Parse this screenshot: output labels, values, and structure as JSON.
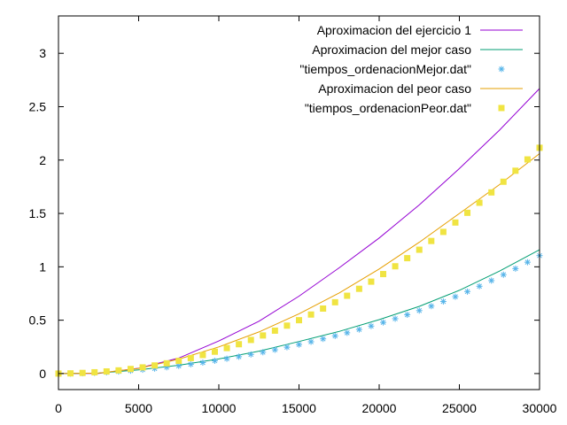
{
  "chart_data": {
    "type": "line",
    "title": "",
    "xlabel": "",
    "ylabel": "",
    "xlim": [
      0,
      30000
    ],
    "ylim": [
      -0.15,
      3.35
    ],
    "grid": false,
    "legend_position": "top-right",
    "x_ticks": [
      0,
      5000,
      10000,
      15000,
      20000,
      25000,
      30000
    ],
    "x_tick_labels": [
      "0",
      "5000",
      "10000",
      "15000",
      "20000",
      "25000",
      "30000"
    ],
    "y_ticks": [
      0,
      0.5,
      1,
      1.5,
      2,
      2.5,
      3
    ],
    "y_tick_labels": [
      "0",
      "0.5",
      "1",
      "1.5",
      "2",
      "2.5",
      "3"
    ],
    "series": [
      {
        "name": "Aproximacion del ejercicio 1",
        "style": "line",
        "color": "#9400d3",
        "x": [
          0,
          2500,
          5000,
          7500,
          10000,
          12500,
          15000,
          17500,
          20000,
          22500,
          25000,
          27500,
          30000
        ],
        "y": [
          0,
          0.0015,
          0.05,
          0.145,
          0.305,
          0.49,
          0.725,
          0.99,
          1.27,
          1.58,
          1.92,
          2.28,
          2.67
        ]
      },
      {
        "name": "Aproximacion del mejor caso",
        "style": "line",
        "color": "#009e73",
        "x": [
          0,
          2500,
          5000,
          7500,
          10000,
          12500,
          15000,
          17500,
          20000,
          22500,
          25000,
          27500,
          30000
        ],
        "y": [
          0,
          0.004,
          0.035,
          0.078,
          0.137,
          0.21,
          0.3,
          0.395,
          0.505,
          0.63,
          0.78,
          0.96,
          1.16
        ]
      },
      {
        "name": "\"tiempos_ordenacionMejor.dat\"",
        "style": "points-star",
        "color": "#56b4e9",
        "x": [
          0,
          750,
          1500,
          2250,
          3000,
          3750,
          4500,
          5250,
          6000,
          6750,
          7500,
          8250,
          9000,
          9750,
          10500,
          11250,
          12000,
          12750,
          13500,
          14250,
          15000,
          15750,
          16500,
          17250,
          18000,
          18750,
          19500,
          20250,
          21000,
          21750,
          22500,
          23250,
          24000,
          24750,
          25500,
          26250,
          27000,
          27750,
          28500,
          29250,
          30000
        ],
        "y": [
          0.0,
          0.0,
          0.003,
          0.007,
          0.012,
          0.019,
          0.027,
          0.036,
          0.047,
          0.059,
          0.072,
          0.087,
          0.103,
          0.12,
          0.139,
          0.158,
          0.179,
          0.2,
          0.223,
          0.247,
          0.272,
          0.298,
          0.325,
          0.353,
          0.382,
          0.413,
          0.445,
          0.479,
          0.514,
          0.551,
          0.59,
          0.632,
          0.675,
          0.72,
          0.768,
          0.818,
          0.871,
          0.926,
          0.983,
          1.043,
          1.105
        ]
      },
      {
        "name": "Aproximacion del peor caso",
        "style": "line",
        "color": "#e69f00",
        "x": [
          0,
          2500,
          5000,
          7500,
          10000,
          12500,
          15000,
          17500,
          20000,
          22500,
          25000,
          27500,
          30000
        ],
        "y": [
          0,
          0.004,
          0.048,
          0.135,
          0.25,
          0.39,
          0.56,
          0.755,
          0.98,
          1.23,
          1.5,
          1.77,
          2.06
        ]
      },
      {
        "name": "\"tiempos_ordenacionPeor.dat\"",
        "style": "points-square",
        "color": "#f0e442",
        "x": [
          0,
          750,
          1500,
          2250,
          3000,
          3750,
          4500,
          5250,
          6000,
          6750,
          7500,
          8250,
          9000,
          9750,
          10500,
          11250,
          12000,
          12750,
          13500,
          14250,
          15000,
          15750,
          16500,
          17250,
          18000,
          18750,
          19500,
          20250,
          21000,
          21750,
          22500,
          23250,
          24000,
          24750,
          25500,
          26250,
          27000,
          27750,
          28500,
          29250,
          30000
        ],
        "y": [
          0.0,
          0.002,
          0.006,
          0.012,
          0.02,
          0.03,
          0.043,
          0.058,
          0.076,
          0.096,
          0.119,
          0.145,
          0.174,
          0.205,
          0.239,
          0.275,
          0.315,
          0.357,
          0.402,
          0.449,
          0.5,
          0.553,
          0.609,
          0.668,
          0.729,
          0.794,
          0.861,
          0.932,
          1.005,
          1.081,
          1.16,
          1.242,
          1.327,
          1.415,
          1.506,
          1.6,
          1.697,
          1.797,
          1.9,
          2.006,
          2.115
        ]
      }
    ]
  }
}
